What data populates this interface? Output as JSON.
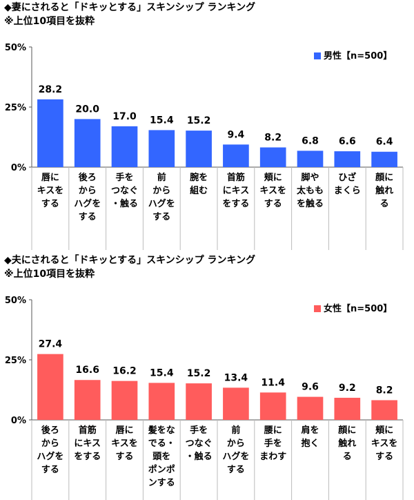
{
  "chart_data": [
    {
      "type": "bar",
      "title": "◆妻にされると「ドキッとする」スキンシップ ランキング",
      "subtitle": "※上位10項目を抜粋",
      "ylim": [
        0,
        50
      ],
      "y_ticks": [
        "0%",
        "25%",
        "50%"
      ],
      "legend_position": "top-right",
      "color": "#3366ff",
      "categories": [
        [
          "唇に",
          "キスを",
          "する"
        ],
        [
          "後ろ",
          "から",
          "ハグを",
          "する"
        ],
        [
          "手を",
          "つなぐ",
          "・触る"
        ],
        [
          "前",
          "から",
          "ハグを",
          "する"
        ],
        [
          "腕を",
          "組む"
        ],
        [
          "首筋",
          "にキス",
          "をする"
        ],
        [
          "頬に",
          "キスを",
          "する"
        ],
        [
          "脚や",
          "太もも",
          "を触る"
        ],
        [
          "ひざ",
          "まくら"
        ],
        [
          "顔に",
          "触れ",
          "る"
        ]
      ],
      "series": [
        {
          "name": "男性【n=500】",
          "values": [
            28.2,
            20.0,
            17.0,
            15.4,
            15.2,
            9.4,
            8.2,
            6.8,
            6.6,
            6.4
          ]
        }
      ]
    },
    {
      "type": "bar",
      "title": "◆夫にされると「ドキッとする」スキンシップ ランキング",
      "subtitle": "※上位10項目を抜粋",
      "ylim": [
        0,
        50
      ],
      "y_ticks": [
        "0%",
        "25%",
        "50%"
      ],
      "legend_position": "top-right",
      "color": "#ff5c5c",
      "categories": [
        [
          "後ろ",
          "から",
          "ハグを",
          "する"
        ],
        [
          "首筋",
          "にキス",
          "をする"
        ],
        [
          "唇に",
          "キスを",
          "する"
        ],
        [
          "髪をな",
          "でる・",
          "頭を",
          "ポンポ",
          "ンする"
        ],
        [
          "手を",
          "つなぐ",
          "・触る"
        ],
        [
          "前",
          "から",
          "ハグを",
          "する"
        ],
        [
          "腰に",
          "手を",
          "まわす"
        ],
        [
          "肩を",
          "抱く"
        ],
        [
          "顔に",
          "触れ",
          "る"
        ],
        [
          "頬に",
          "キスを",
          "する"
        ]
      ],
      "series": [
        {
          "name": "女性【n=500】",
          "values": [
            27.4,
            16.6,
            16.2,
            15.4,
            15.2,
            13.4,
            11.4,
            9.6,
            9.2,
            8.2
          ]
        }
      ]
    }
  ]
}
